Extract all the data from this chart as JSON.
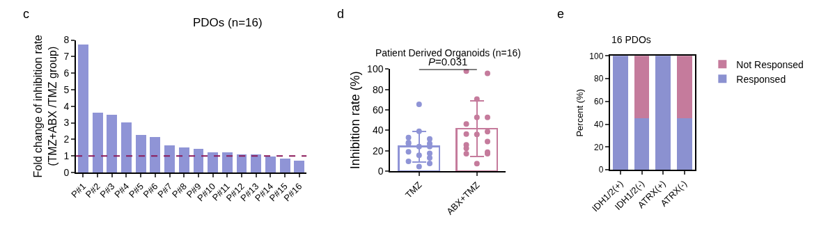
{
  "chart_data": [
    {
      "type": "bar",
      "title": "PDOs (n=16)",
      "ylabel": "Fold change of inhibition rate\n(TMZ+ABX /TMZ group)",
      "annotations": [
        "c"
      ],
      "categories": [
        "P#1",
        "P#2",
        "P#3",
        "P#4",
        "P#5",
        "P#6",
        "P#7",
        "P#8",
        "P#9",
        "P#10",
        "P#11",
        "P#12",
        "P#13",
        "P#14",
        "P#15",
        "P#16"
      ],
      "values": [
        7.73,
        3.63,
        3.49,
        3.03,
        2.27,
        2.16,
        1.65,
        1.49,
        1.44,
        1.23,
        1.2,
        1.09,
        1.07,
        0.96,
        0.84,
        0.72
      ],
      "color": "#8f94d6",
      "ylim": [
        0,
        8
      ],
      "yticks": [
        0,
        1,
        2,
        3,
        4,
        5,
        6,
        7,
        8
      ],
      "ref_lines": [
        {
          "axis": "y",
          "value": 1,
          "color": "#8b1a5a",
          "line_style": "dashed"
        }
      ],
      "grid": false,
      "legend": false
    },
    {
      "type": "bar",
      "title": "Patient Derived Organoids (n=16)",
      "ylabel": "Inhibition rate (%)",
      "annotations": [
        "d",
        "P=0.031"
      ],
      "categories": [
        "TMZ",
        "ABX+TMZ"
      ],
      "values": [
        24.1,
        41.7
      ],
      "colors": [
        "#8f94d6",
        "#c57b9c"
      ],
      "errors": [
        14.9,
        27
      ],
      "series": [
        {
          "type": "scatter",
          "color": "#8f94d6",
          "x": [
            "TMZ",
            "TMZ",
            "TMZ",
            "TMZ",
            "TMZ"
          ],
          "values": [
            33,
            28,
            27,
            19,
            9.5
          ]
        },
        {
          "type": "scatter",
          "color": "#8f94d6",
          "x": [
            "TMZ",
            "TMZ",
            "TMZ",
            "TMZ",
            "TMZ"
          ],
          "values": [
            65.5,
            39,
            24,
            15.5,
            4.5
          ]
        },
        {
          "type": "scatter",
          "color": "#8f94d6",
          "x": [
            "TMZ",
            "TMZ",
            "TMZ",
            "TMZ",
            "TMZ",
            "TMZ"
          ],
          "values": [
            31.5,
            27,
            24,
            17.5,
            13,
            7.5
          ]
        },
        {
          "type": "scatter",
          "color": "#c57b9c",
          "x": [
            "ABX+TMZ",
            "ABX+TMZ",
            "ABX+TMZ",
            "ABX+TMZ",
            "ABX+TMZ",
            "ABX+TMZ"
          ],
          "values": [
            98,
            46.3,
            36.4,
            25.8,
            22.3,
            17.1
          ]
        },
        {
          "type": "scatter",
          "color": "#c57b9c",
          "x": [
            "ABX+TMZ",
            "ABX+TMZ",
            "ABX+TMZ",
            "ABX+TMZ"
          ],
          "values": [
            70.6,
            52.8,
            36,
            7.3
          ]
        },
        {
          "type": "scatter",
          "color": "#c57b9c",
          "x": [
            "ABX+TMZ",
            "ABX+TMZ",
            "ABX+TMZ",
            "ABX+TMZ",
            "ABX+TMZ",
            "ABX+TMZ"
          ],
          "values": [
            95.9,
            52.8,
            38.8,
            29,
            18.6,
            17.1
          ]
        }
      ],
      "marker": "circle",
      "ylim": [
        0,
        100
      ],
      "yticks": [
        0,
        20,
        40,
        60,
        80,
        100
      ],
      "grid": false,
      "legend": false
    },
    {
      "type": "bar",
      "title": "16 PDOs",
      "ylabel": "Percent (%)",
      "annotations": [
        "e"
      ],
      "stacked": true,
      "categories": [
        "IDH1/2(+)",
        "IDH1/2(-)",
        "ATRX(+)",
        "ATRX(-)"
      ],
      "series": [
        {
          "name": "Responsed",
          "color": "#8b91d0",
          "values": [
            100,
            45,
            100,
            45
          ]
        },
        {
          "name": "Not Responsed",
          "color": "#c57b9c",
          "values": [
            0,
            55,
            0,
            55
          ]
        }
      ],
      "ylim": [
        0,
        100
      ],
      "yticks": [
        0,
        20,
        40,
        60,
        80,
        100
      ],
      "grid": false,
      "legend": "top right"
    }
  ]
}
